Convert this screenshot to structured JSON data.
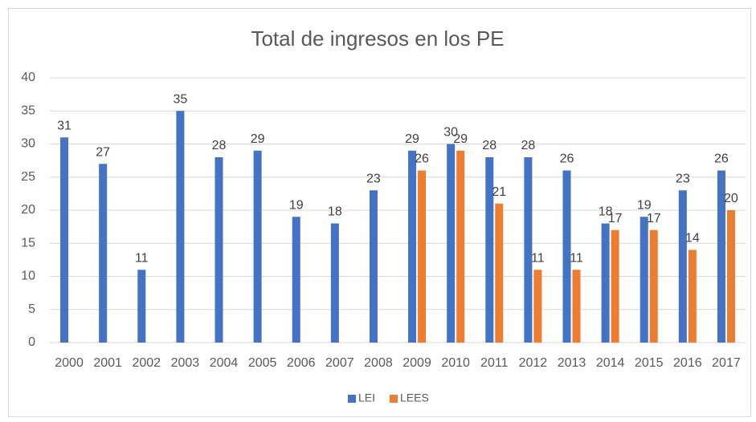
{
  "chart_data": {
    "type": "bar",
    "title": "Total de ingresos en los PE",
    "categories": [
      "2000",
      "2001",
      "2002",
      "2003",
      "2004",
      "2005",
      "2006",
      "2007",
      "2008",
      "2009",
      "2010",
      "2011",
      "2012",
      "2013",
      "2014",
      "2015",
      "2016",
      "2017"
    ],
    "series": [
      {
        "name": "LEI",
        "color": "#4472c4",
        "values": [
          31,
          27,
          11,
          35,
          28,
          29,
          19,
          18,
          23,
          29,
          30,
          28,
          28,
          26,
          18,
          19,
          23,
          26
        ]
      },
      {
        "name": "LEES",
        "color": "#ed7d31",
        "values": [
          null,
          null,
          null,
          null,
          null,
          null,
          null,
          null,
          null,
          26,
          29,
          21,
          11,
          11,
          17,
          17,
          14,
          20
        ]
      }
    ],
    "ylim": [
      0,
      40
    ],
    "yticks": [
      0,
      5,
      10,
      15,
      20,
      25,
      30,
      35,
      40
    ],
    "grid": true,
    "legend": "bottom"
  }
}
